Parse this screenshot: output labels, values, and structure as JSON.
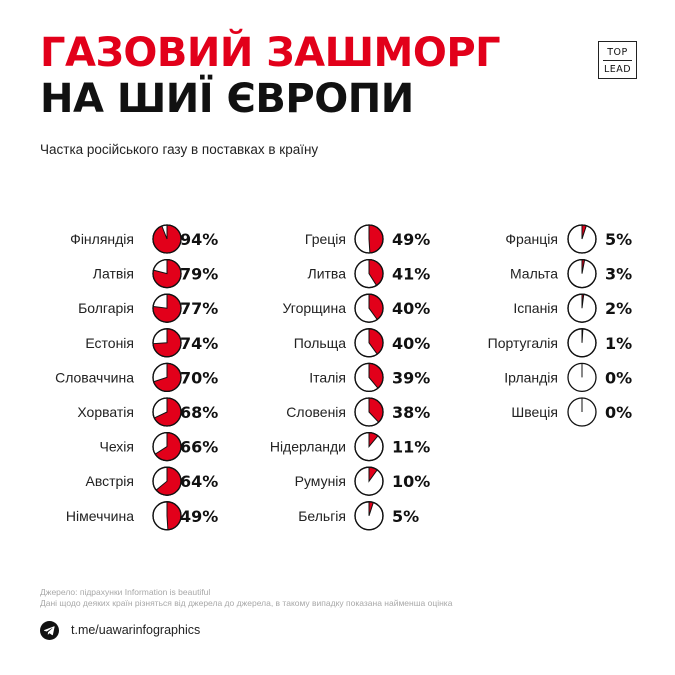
{
  "title": {
    "line1": "ГАЗОВИЙ ЗАШМОРГ",
    "line2": "НА ШИЇ ЄВРОПИ"
  },
  "logo": {
    "line1": "TOP",
    "line2": "LEAD"
  },
  "subtitle": "Частка російського газу в поставках в країну",
  "chart_data": {
    "type": "pie",
    "unit": "%",
    "columns": [
      [
        {
          "country": "Фінляндія",
          "value": 94
        },
        {
          "country": "Латвія",
          "value": 79
        },
        {
          "country": "Болгарія",
          "value": 77
        },
        {
          "country": "Естонія",
          "value": 74
        },
        {
          "country": "Словаччина",
          "value": 70
        },
        {
          "country": "Хорватія",
          "value": 68
        },
        {
          "country": "Чехія",
          "value": 66
        },
        {
          "country": "Австрія",
          "value": 64
        },
        {
          "country": "Німеччина",
          "value": 49
        }
      ],
      [
        {
          "country": "Греція",
          "value": 49
        },
        {
          "country": "Литва",
          "value": 41
        },
        {
          "country": "Угорщина",
          "value": 40
        },
        {
          "country": "Польща",
          "value": 40
        },
        {
          "country": "Італія",
          "value": 39
        },
        {
          "country": "Словенія",
          "value": 38
        },
        {
          "country": "Нідерланди",
          "value": 11
        },
        {
          "country": "Румунія",
          "value": 10
        },
        {
          "country": "Бельгія",
          "value": 5
        }
      ],
      [
        {
          "country": "Франція",
          "value": 5
        },
        {
          "country": "Мальта",
          "value": 3
        },
        {
          "country": "Іспанія",
          "value": 2
        },
        {
          "country": "Португалія",
          "value": 1
        },
        {
          "country": "Ірландія",
          "value": 0
        },
        {
          "country": "Швеція",
          "value": 0
        }
      ]
    ],
    "colors": {
      "filled": "#e2001a",
      "empty": "#ffffff",
      "outline": "#111111"
    }
  },
  "source": {
    "line1": "Джерело: підрахунки Information is beautiful",
    "line2": "Дані щодо деяких країн різняться від джерела до джерела, в такому випадку показана найменша оцінка"
  },
  "footer": {
    "link": "t.me/uawarinfographics",
    "icon": "telegram-icon"
  }
}
